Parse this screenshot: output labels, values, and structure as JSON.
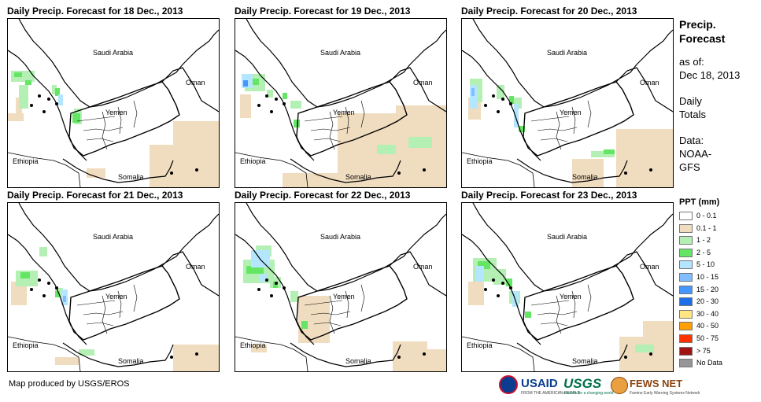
{
  "panels": [
    {
      "title": "Daily Precip. Forecast for 18 Dec., 2013"
    },
    {
      "title": "Daily Precip. Forecast for 19 Dec., 2013"
    },
    {
      "title": "Daily Precip. Forecast for 20 Dec., 2013"
    },
    {
      "title": "Daily Precip. Forecast for 21 Dec., 2013"
    },
    {
      "title": "Daily Precip. Forecast for 22 Dec., 2013"
    },
    {
      "title": "Daily Precip. Forecast for 23 Dec., 2013"
    }
  ],
  "map_labels": {
    "saudi": "Saudi Arabia",
    "oman": "Oman",
    "yemen": "Yemen",
    "ethiopia": "Ethiopia",
    "somalia": "Somalia"
  },
  "legend": {
    "title_line1": "Precip.",
    "title_line2": "Forecast",
    "asof_label": "as of:",
    "asof_date": "Dec 18, 2013",
    "totals_line1": "Daily",
    "totals_line2": "Totals",
    "data_label": "Data:",
    "data_line1": "NOAA-",
    "data_line2": "GFS",
    "ppt_title": "PPT (mm)",
    "items": [
      {
        "label": "0 - 0.1",
        "color": "#ffffff"
      },
      {
        "label": "0.1 - 1",
        "color": "#f0dcbf"
      },
      {
        "label": "1 - 2",
        "color": "#b4f0b4"
      },
      {
        "label": "2 - 5",
        "color": "#64e664"
      },
      {
        "label": "5 - 10",
        "color": "#b4e6ff"
      },
      {
        "label": "10 - 15",
        "color": "#82beff"
      },
      {
        "label": "15 - 20",
        "color": "#4696ff"
      },
      {
        "label": "20 - 30",
        "color": "#1e6eeb"
      },
      {
        "label": "30 - 40",
        "color": "#ffe682"
      },
      {
        "label": "40 - 50",
        "color": "#ffa000"
      },
      {
        "label": "50 - 75",
        "color": "#ff3200"
      },
      {
        "label": "> 75",
        "color": "#a01414"
      },
      {
        "label": "No Data",
        "color": "#969696"
      }
    ]
  },
  "credit": "Map produced by USGS/EROS",
  "logos": {
    "usaid": "USAID",
    "usaid_sub": "FROM THE AMERICAN PEOPLE",
    "usgs": "USGS",
    "usgs_sub": "science for a changing world",
    "fews": "FEWS NET",
    "fews_sub": "Famine Early Warning Systems Network"
  },
  "colors": {
    "tan": "#f0dcbf",
    "light_green": "#b4f0b4",
    "green": "#64e664",
    "light_blue": "#b4e6ff",
    "blue": "#82beff",
    "dark_blue": "#4696ff",
    "usaid_red": "#c8102e",
    "usaid_blue": "#0a3d8f",
    "usgs_green": "#00704a",
    "fews_brown": "#8b4513"
  }
}
